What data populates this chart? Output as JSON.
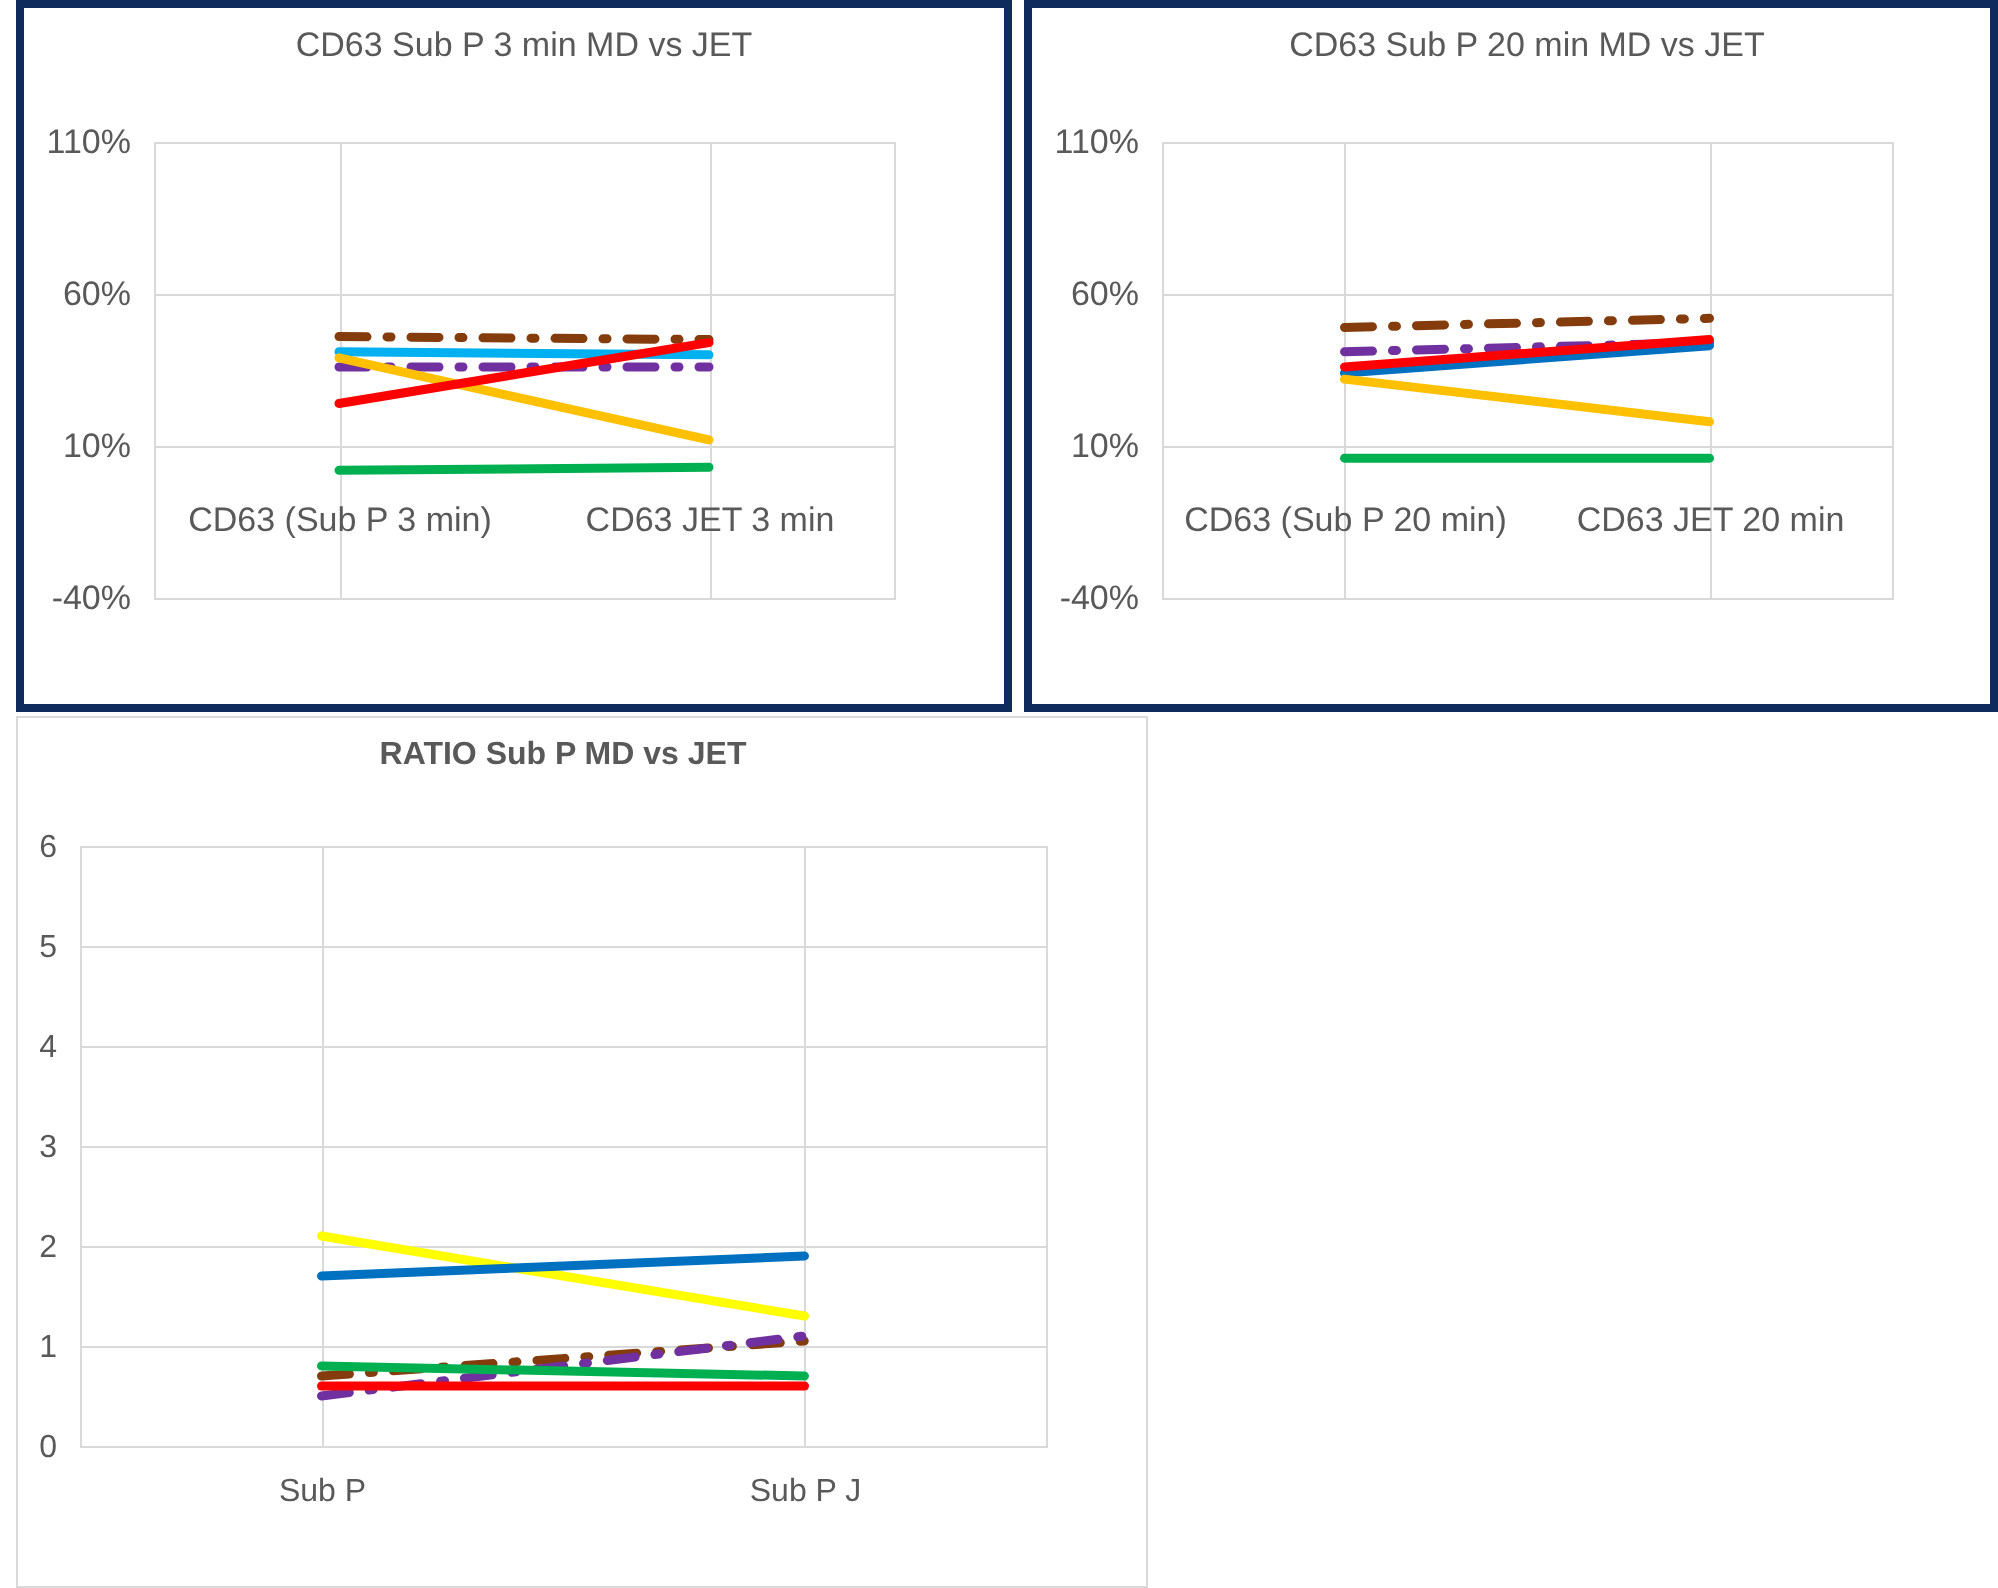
{
  "chart_data": [
    {
      "type": "line",
      "title": "CD63 Sub P 3 min MD vs JET",
      "categories": [
        "CD63 (Sub P 3 min)",
        "CD63 JET 3 min"
      ],
      "ylim": [
        -40,
        110
      ],
      "yticks": [
        {
          "value": -40,
          "label": "-40%"
        },
        {
          "value": 10,
          "label": "10%"
        },
        {
          "value": 60,
          "label": "60%"
        },
        {
          "value": 110,
          "label": "110%"
        }
      ],
      "grid": true,
      "marker": "none",
      "series": [
        {
          "color": "#843c0c",
          "values": [
            46,
            45
          ],
          "line_style": "dashed"
        },
        {
          "color": "#00b0f0",
          "values": [
            41,
            40
          ]
        },
        {
          "color": "#7030a0",
          "values": [
            36,
            36
          ],
          "line_style": "dashed"
        },
        {
          "color": "#ffc000",
          "values": [
            39,
            12
          ]
        },
        {
          "color": "#ff0000",
          "values": [
            24,
            44
          ]
        },
        {
          "color": "#00b050",
          "values": [
            2,
            3
          ]
        }
      ]
    },
    {
      "type": "line",
      "title": "CD63 Sub P 20 min  MD vs JET",
      "categories": [
        "CD63 (Sub P 20 min)",
        "CD63 JET 20 min"
      ],
      "ylim": [
        -40,
        110
      ],
      "yticks": [
        {
          "value": -40,
          "label": "-40%"
        },
        {
          "value": 10,
          "label": "10%"
        },
        {
          "value": 60,
          "label": "60%"
        },
        {
          "value": 110,
          "label": "110%"
        }
      ],
      "grid": true,
      "marker": "none",
      "series": [
        {
          "color": "#843c0c",
          "values": [
            49,
            52
          ],
          "line_style": "dashed"
        },
        {
          "color": "#7030a0",
          "values": [
            41,
            44
          ],
          "line_style": "dashed"
        },
        {
          "color": "#0070c0",
          "values": [
            34,
            43
          ]
        },
        {
          "color": "#ff0000",
          "values": [
            36,
            45
          ]
        },
        {
          "color": "#ffc000",
          "values": [
            32,
            18
          ]
        },
        {
          "color": "#00b050",
          "values": [
            6,
            6
          ]
        }
      ]
    },
    {
      "type": "line",
      "title": "RATIO Sub P MD vs  JET",
      "categories": [
        "Sub P",
        "Sub  P  J"
      ],
      "ylim": [
        0,
        6
      ],
      "yticks": [
        0,
        1,
        2,
        3,
        4,
        5,
        6
      ],
      "grid": true,
      "marker": "none",
      "series": [
        {
          "color": "#ffff00",
          "values": [
            2.1,
            1.3
          ]
        },
        {
          "color": "#0070c0",
          "values": [
            1.7,
            1.9
          ]
        },
        {
          "color": "#843c0c",
          "values": [
            0.7,
            1.05
          ],
          "line_style": "dashed"
        },
        {
          "color": "#7030a0",
          "values": [
            0.5,
            1.1
          ],
          "line_style": "dashed"
        },
        {
          "color": "#00b050",
          "values": [
            0.8,
            0.7
          ]
        },
        {
          "color": "#ff0000",
          "values": [
            0.6,
            0.6
          ]
        }
      ]
    }
  ]
}
